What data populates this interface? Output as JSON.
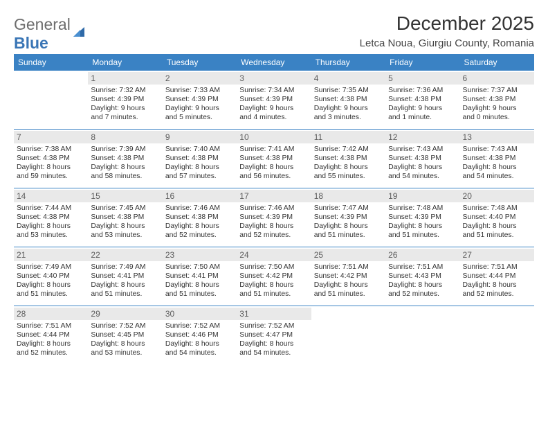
{
  "logo": {
    "general": "General",
    "blue": "Blue"
  },
  "title": "December 2025",
  "location": "Letca Noua, Giurgiu County, Romania",
  "colors": {
    "header_bg": "#3a82c4",
    "header_text": "#ffffff",
    "daynum_bg": "#e9e9e9",
    "daynum_text": "#5d5d5d",
    "body_text": "#333333",
    "rule": "#3a82c4",
    "background": "#ffffff"
  },
  "weekdays": [
    "Sunday",
    "Monday",
    "Tuesday",
    "Wednesday",
    "Thursday",
    "Friday",
    "Saturday"
  ],
  "weeks": [
    [
      null,
      {
        "n": "1",
        "sr": "Sunrise: 7:32 AM",
        "ss": "Sunset: 4:39 PM",
        "d1": "Daylight: 9 hours",
        "d2": "and 7 minutes."
      },
      {
        "n": "2",
        "sr": "Sunrise: 7:33 AM",
        "ss": "Sunset: 4:39 PM",
        "d1": "Daylight: 9 hours",
        "d2": "and 5 minutes."
      },
      {
        "n": "3",
        "sr": "Sunrise: 7:34 AM",
        "ss": "Sunset: 4:39 PM",
        "d1": "Daylight: 9 hours",
        "d2": "and 4 minutes."
      },
      {
        "n": "4",
        "sr": "Sunrise: 7:35 AM",
        "ss": "Sunset: 4:38 PM",
        "d1": "Daylight: 9 hours",
        "d2": "and 3 minutes."
      },
      {
        "n": "5",
        "sr": "Sunrise: 7:36 AM",
        "ss": "Sunset: 4:38 PM",
        "d1": "Daylight: 9 hours",
        "d2": "and 1 minute."
      },
      {
        "n": "6",
        "sr": "Sunrise: 7:37 AM",
        "ss": "Sunset: 4:38 PM",
        "d1": "Daylight: 9 hours",
        "d2": "and 0 minutes."
      }
    ],
    [
      {
        "n": "7",
        "sr": "Sunrise: 7:38 AM",
        "ss": "Sunset: 4:38 PM",
        "d1": "Daylight: 8 hours",
        "d2": "and 59 minutes."
      },
      {
        "n": "8",
        "sr": "Sunrise: 7:39 AM",
        "ss": "Sunset: 4:38 PM",
        "d1": "Daylight: 8 hours",
        "d2": "and 58 minutes."
      },
      {
        "n": "9",
        "sr": "Sunrise: 7:40 AM",
        "ss": "Sunset: 4:38 PM",
        "d1": "Daylight: 8 hours",
        "d2": "and 57 minutes."
      },
      {
        "n": "10",
        "sr": "Sunrise: 7:41 AM",
        "ss": "Sunset: 4:38 PM",
        "d1": "Daylight: 8 hours",
        "d2": "and 56 minutes."
      },
      {
        "n": "11",
        "sr": "Sunrise: 7:42 AM",
        "ss": "Sunset: 4:38 PM",
        "d1": "Daylight: 8 hours",
        "d2": "and 55 minutes."
      },
      {
        "n": "12",
        "sr": "Sunrise: 7:43 AM",
        "ss": "Sunset: 4:38 PM",
        "d1": "Daylight: 8 hours",
        "d2": "and 54 minutes."
      },
      {
        "n": "13",
        "sr": "Sunrise: 7:43 AM",
        "ss": "Sunset: 4:38 PM",
        "d1": "Daylight: 8 hours",
        "d2": "and 54 minutes."
      }
    ],
    [
      {
        "n": "14",
        "sr": "Sunrise: 7:44 AM",
        "ss": "Sunset: 4:38 PM",
        "d1": "Daylight: 8 hours",
        "d2": "and 53 minutes."
      },
      {
        "n": "15",
        "sr": "Sunrise: 7:45 AM",
        "ss": "Sunset: 4:38 PM",
        "d1": "Daylight: 8 hours",
        "d2": "and 53 minutes."
      },
      {
        "n": "16",
        "sr": "Sunrise: 7:46 AM",
        "ss": "Sunset: 4:38 PM",
        "d1": "Daylight: 8 hours",
        "d2": "and 52 minutes."
      },
      {
        "n": "17",
        "sr": "Sunrise: 7:46 AM",
        "ss": "Sunset: 4:39 PM",
        "d1": "Daylight: 8 hours",
        "d2": "and 52 minutes."
      },
      {
        "n": "18",
        "sr": "Sunrise: 7:47 AM",
        "ss": "Sunset: 4:39 PM",
        "d1": "Daylight: 8 hours",
        "d2": "and 51 minutes."
      },
      {
        "n": "19",
        "sr": "Sunrise: 7:48 AM",
        "ss": "Sunset: 4:39 PM",
        "d1": "Daylight: 8 hours",
        "d2": "and 51 minutes."
      },
      {
        "n": "20",
        "sr": "Sunrise: 7:48 AM",
        "ss": "Sunset: 4:40 PM",
        "d1": "Daylight: 8 hours",
        "d2": "and 51 minutes."
      }
    ],
    [
      {
        "n": "21",
        "sr": "Sunrise: 7:49 AM",
        "ss": "Sunset: 4:40 PM",
        "d1": "Daylight: 8 hours",
        "d2": "and 51 minutes."
      },
      {
        "n": "22",
        "sr": "Sunrise: 7:49 AM",
        "ss": "Sunset: 4:41 PM",
        "d1": "Daylight: 8 hours",
        "d2": "and 51 minutes."
      },
      {
        "n": "23",
        "sr": "Sunrise: 7:50 AM",
        "ss": "Sunset: 4:41 PM",
        "d1": "Daylight: 8 hours",
        "d2": "and 51 minutes."
      },
      {
        "n": "24",
        "sr": "Sunrise: 7:50 AM",
        "ss": "Sunset: 4:42 PM",
        "d1": "Daylight: 8 hours",
        "d2": "and 51 minutes."
      },
      {
        "n": "25",
        "sr": "Sunrise: 7:51 AM",
        "ss": "Sunset: 4:42 PM",
        "d1": "Daylight: 8 hours",
        "d2": "and 51 minutes."
      },
      {
        "n": "26",
        "sr": "Sunrise: 7:51 AM",
        "ss": "Sunset: 4:43 PM",
        "d1": "Daylight: 8 hours",
        "d2": "and 52 minutes."
      },
      {
        "n": "27",
        "sr": "Sunrise: 7:51 AM",
        "ss": "Sunset: 4:44 PM",
        "d1": "Daylight: 8 hours",
        "d2": "and 52 minutes."
      }
    ],
    [
      {
        "n": "28",
        "sr": "Sunrise: 7:51 AM",
        "ss": "Sunset: 4:44 PM",
        "d1": "Daylight: 8 hours",
        "d2": "and 52 minutes."
      },
      {
        "n": "29",
        "sr": "Sunrise: 7:52 AM",
        "ss": "Sunset: 4:45 PM",
        "d1": "Daylight: 8 hours",
        "d2": "and 53 minutes."
      },
      {
        "n": "30",
        "sr": "Sunrise: 7:52 AM",
        "ss": "Sunset: 4:46 PM",
        "d1": "Daylight: 8 hours",
        "d2": "and 54 minutes."
      },
      {
        "n": "31",
        "sr": "Sunrise: 7:52 AM",
        "ss": "Sunset: 4:47 PM",
        "d1": "Daylight: 8 hours",
        "d2": "and 54 minutes."
      },
      null,
      null,
      null
    ]
  ]
}
